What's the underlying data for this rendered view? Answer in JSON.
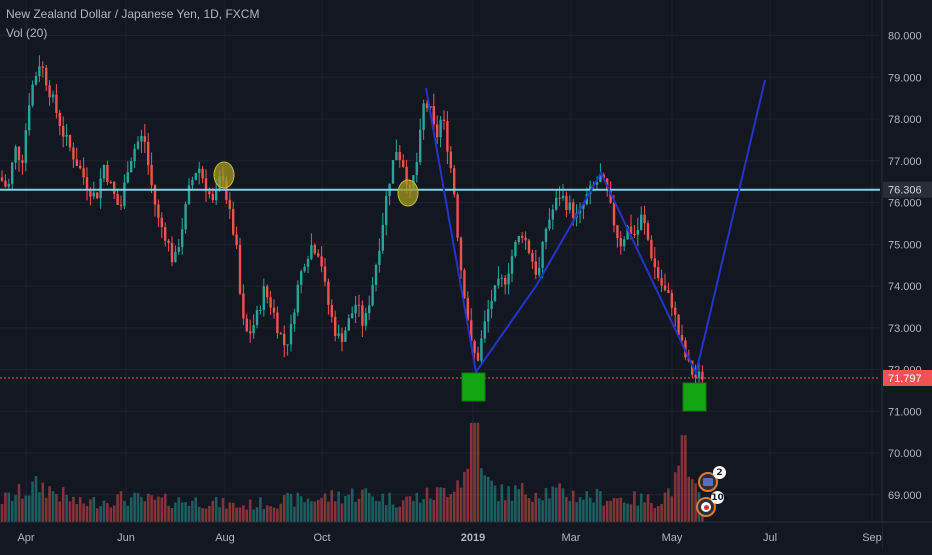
{
  "legend": {
    "title": "New Zealand Dollar / Japanese Yen, 1D, FXCM",
    "indicator": "Vol (20)"
  },
  "colors": {
    "background": "#131722",
    "up": "#26a69a",
    "down": "#ef5350",
    "horizontal_line": "#7fd3e0",
    "pattern_line": "#2433c9",
    "marker_box": "#13a613",
    "ellipse": "#a39a1f",
    "last_price": "#ef5350"
  },
  "chart_data": {
    "type": "candlestick",
    "symbol": "NZDJPY",
    "y_axis": {
      "ticks": [
        "80.000",
        "79.000",
        "78.000",
        "77.000",
        "76.000",
        "75.000",
        "74.000",
        "73.000",
        "72.000",
        "71.000",
        "70.000",
        "69.000"
      ],
      "min": 68.25,
      "max": 80.5
    },
    "x_axis": {
      "ticks": [
        "Apr",
        "Jun",
        "Aug",
        "Oct",
        "2019",
        "Mar",
        "May",
        "Jul",
        "Sep"
      ]
    },
    "price_labels": {
      "horizontal_level": "76.306",
      "last_price": "71.797"
    },
    "horizontal_level": 76.306,
    "last_price": 71.797,
    "price_path": [
      [
        0,
        76.6
      ],
      [
        8,
        76.3
      ],
      [
        15,
        77.3
      ],
      [
        22,
        77.0
      ],
      [
        30,
        78.6
      ],
      [
        40,
        79.4
      ],
      [
        48,
        78.8
      ],
      [
        56,
        78.2
      ],
      [
        64,
        77.6
      ],
      [
        72,
        77.2
      ],
      [
        80,
        76.8
      ],
      [
        88,
        76.4
      ],
      [
        96,
        76.1
      ],
      [
        104,
        76.9
      ],
      [
        112,
        76.3
      ],
      [
        120,
        75.8
      ],
      [
        128,
        76.9
      ],
      [
        136,
        77.4
      ],
      [
        144,
        77.6
      ],
      [
        150,
        76.6
      ],
      [
        158,
        75.6
      ],
      [
        166,
        75.2
      ],
      [
        174,
        74.5
      ],
      [
        182,
        75.4
      ],
      [
        190,
        76.4
      ],
      [
        198,
        76.9
      ],
      [
        206,
        76.4
      ],
      [
        214,
        75.9
      ],
      [
        222,
        76.8
      ],
      [
        228,
        75.9
      ],
      [
        236,
        75.0
      ],
      [
        242,
        73.2
      ],
      [
        248,
        72.8
      ],
      [
        256,
        73.2
      ],
      [
        264,
        73.9
      ],
      [
        272,
        73.5
      ],
      [
        278,
        73.0
      ],
      [
        284,
        72.6
      ],
      [
        290,
        72.8
      ],
      [
        296,
        73.8
      ],
      [
        304,
        74.6
      ],
      [
        312,
        75.0
      ],
      [
        320,
        74.8
      ],
      [
        326,
        73.8
      ],
      [
        334,
        73.0
      ],
      [
        340,
        72.7
      ],
      [
        348,
        73.1
      ],
      [
        356,
        73.6
      ],
      [
        364,
        73.0
      ],
      [
        372,
        74.0
      ],
      [
        380,
        75.1
      ],
      [
        388,
        76.4
      ],
      [
        396,
        77.3
      ],
      [
        404,
        76.9
      ],
      [
        410,
        76.2
      ],
      [
        418,
        77.1
      ],
      [
        424,
        78.4
      ],
      [
        430,
        78.2
      ],
      [
        436,
        77.5
      ],
      [
        442,
        78.1
      ],
      [
        448,
        77.3
      ],
      [
        454,
        76.3
      ],
      [
        460,
        74.6
      ],
      [
        466,
        73.6
      ],
      [
        472,
        72.4
      ],
      [
        478,
        72.3
      ],
      [
        484,
        73.0
      ],
      [
        490,
        73.6
      ],
      [
        498,
        74.0
      ],
      [
        506,
        74.2
      ],
      [
        514,
        74.9
      ],
      [
        522,
        75.3
      ],
      [
        530,
        74.8
      ],
      [
        538,
        74.2
      ],
      [
        546,
        75.4
      ],
      [
        554,
        75.9
      ],
      [
        560,
        76.2
      ],
      [
        566,
        76.0
      ],
      [
        572,
        75.8
      ],
      [
        578,
        75.6
      ],
      [
        586,
        76.1
      ],
      [
        594,
        76.4
      ],
      [
        600,
        76.6
      ],
      [
        606,
        76.3
      ],
      [
        612,
        75.7
      ],
      [
        620,
        75.0
      ],
      [
        628,
        75.4
      ],
      [
        636,
        75.2
      ],
      [
        642,
        75.7
      ],
      [
        648,
        75.1
      ],
      [
        654,
        74.5
      ],
      [
        660,
        74.1
      ],
      [
        666,
        73.8
      ],
      [
        672,
        73.6
      ],
      [
        678,
        72.9
      ],
      [
        684,
        72.4
      ],
      [
        690,
        72.0
      ],
      [
        696,
        71.8
      ],
      [
        702,
        71.85
      ]
    ],
    "volume_profile": [
      [
        0,
        0.4
      ],
      [
        40,
        0.7
      ],
      [
        80,
        0.35
      ],
      [
        120,
        0.45
      ],
      [
        160,
        0.4
      ],
      [
        200,
        0.4
      ],
      [
        240,
        0.3
      ],
      [
        280,
        0.4
      ],
      [
        320,
        0.45
      ],
      [
        360,
        0.55
      ],
      [
        400,
        0.4
      ],
      [
        440,
        0.55
      ],
      [
        472,
        1.0
      ],
      [
        500,
        0.55
      ],
      [
        540,
        0.6
      ],
      [
        580,
        0.5
      ],
      [
        620,
        0.45
      ],
      [
        660,
        0.4
      ],
      [
        682,
        0.9
      ],
      [
        702,
        0.4
      ]
    ],
    "pattern_lines": [
      {
        "points": [
          [
            426,
            88
          ],
          [
            476,
            372
          ],
          [
            536,
            286
          ],
          [
            601,
            173
          ],
          [
            696,
            373
          ],
          [
            765,
            80
          ]
        ]
      }
    ],
    "marker_boxes": [
      {
        "label": "left-bottom-box",
        "x": 462,
        "y": 373
      },
      {
        "label": "right-bottom-box",
        "x": 683,
        "y": 383
      }
    ],
    "ellipses": [
      {
        "label": "ellipse-1",
        "x": 224,
        "y": 175
      },
      {
        "label": "ellipse-2",
        "x": 408,
        "y": 193
      }
    ]
  },
  "badges": [
    {
      "name": "news-badge",
      "count": "2",
      "icon": "flag-icon"
    },
    {
      "name": "events-badge",
      "count": "10",
      "icon": "jp-flag-icon"
    }
  ]
}
